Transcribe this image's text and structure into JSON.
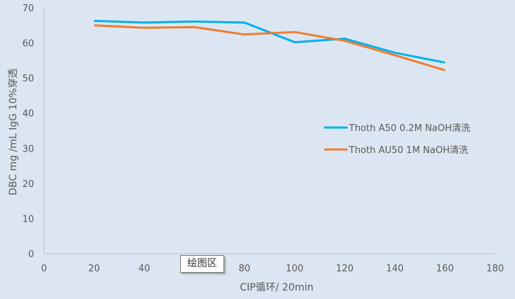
{
  "chart_data": {
    "type": "line",
    "xlabel": "CIP循环/ 20min",
    "ylabel": "DBC mg /mL IgG  10%穿透",
    "xlim": [
      0,
      180
    ],
    "ylim": [
      0,
      70
    ],
    "xticks": [
      0,
      20,
      40,
      60,
      80,
      100,
      120,
      140,
      160,
      180
    ],
    "xtick_labels": [
      "0",
      "20",
      "40",
      "",
      "80",
      "100",
      "120",
      "140",
      "160",
      "180"
    ],
    "yticks": [
      0,
      10,
      20,
      30,
      40,
      50,
      60,
      70
    ],
    "grid": false,
    "legend_position": "right",
    "x": [
      20,
      40,
      60,
      80,
      100,
      120,
      140,
      160
    ],
    "series": [
      {
        "name": "Thoth A50 0.2M NaOH清洗",
        "color": "#00b0f0",
        "values": [
          66.3,
          65.8,
          66.1,
          65.8,
          60.2,
          61.2,
          57.2,
          54.4
        ]
      },
      {
        "name": "Thoth AU50 1M NaOH清洗",
        "color": "#ed7d31",
        "values": [
          65.0,
          64.3,
          64.5,
          62.4,
          63.1,
          60.6,
          56.5,
          52.2
        ]
      }
    ]
  },
  "tooltip": "绘图区"
}
